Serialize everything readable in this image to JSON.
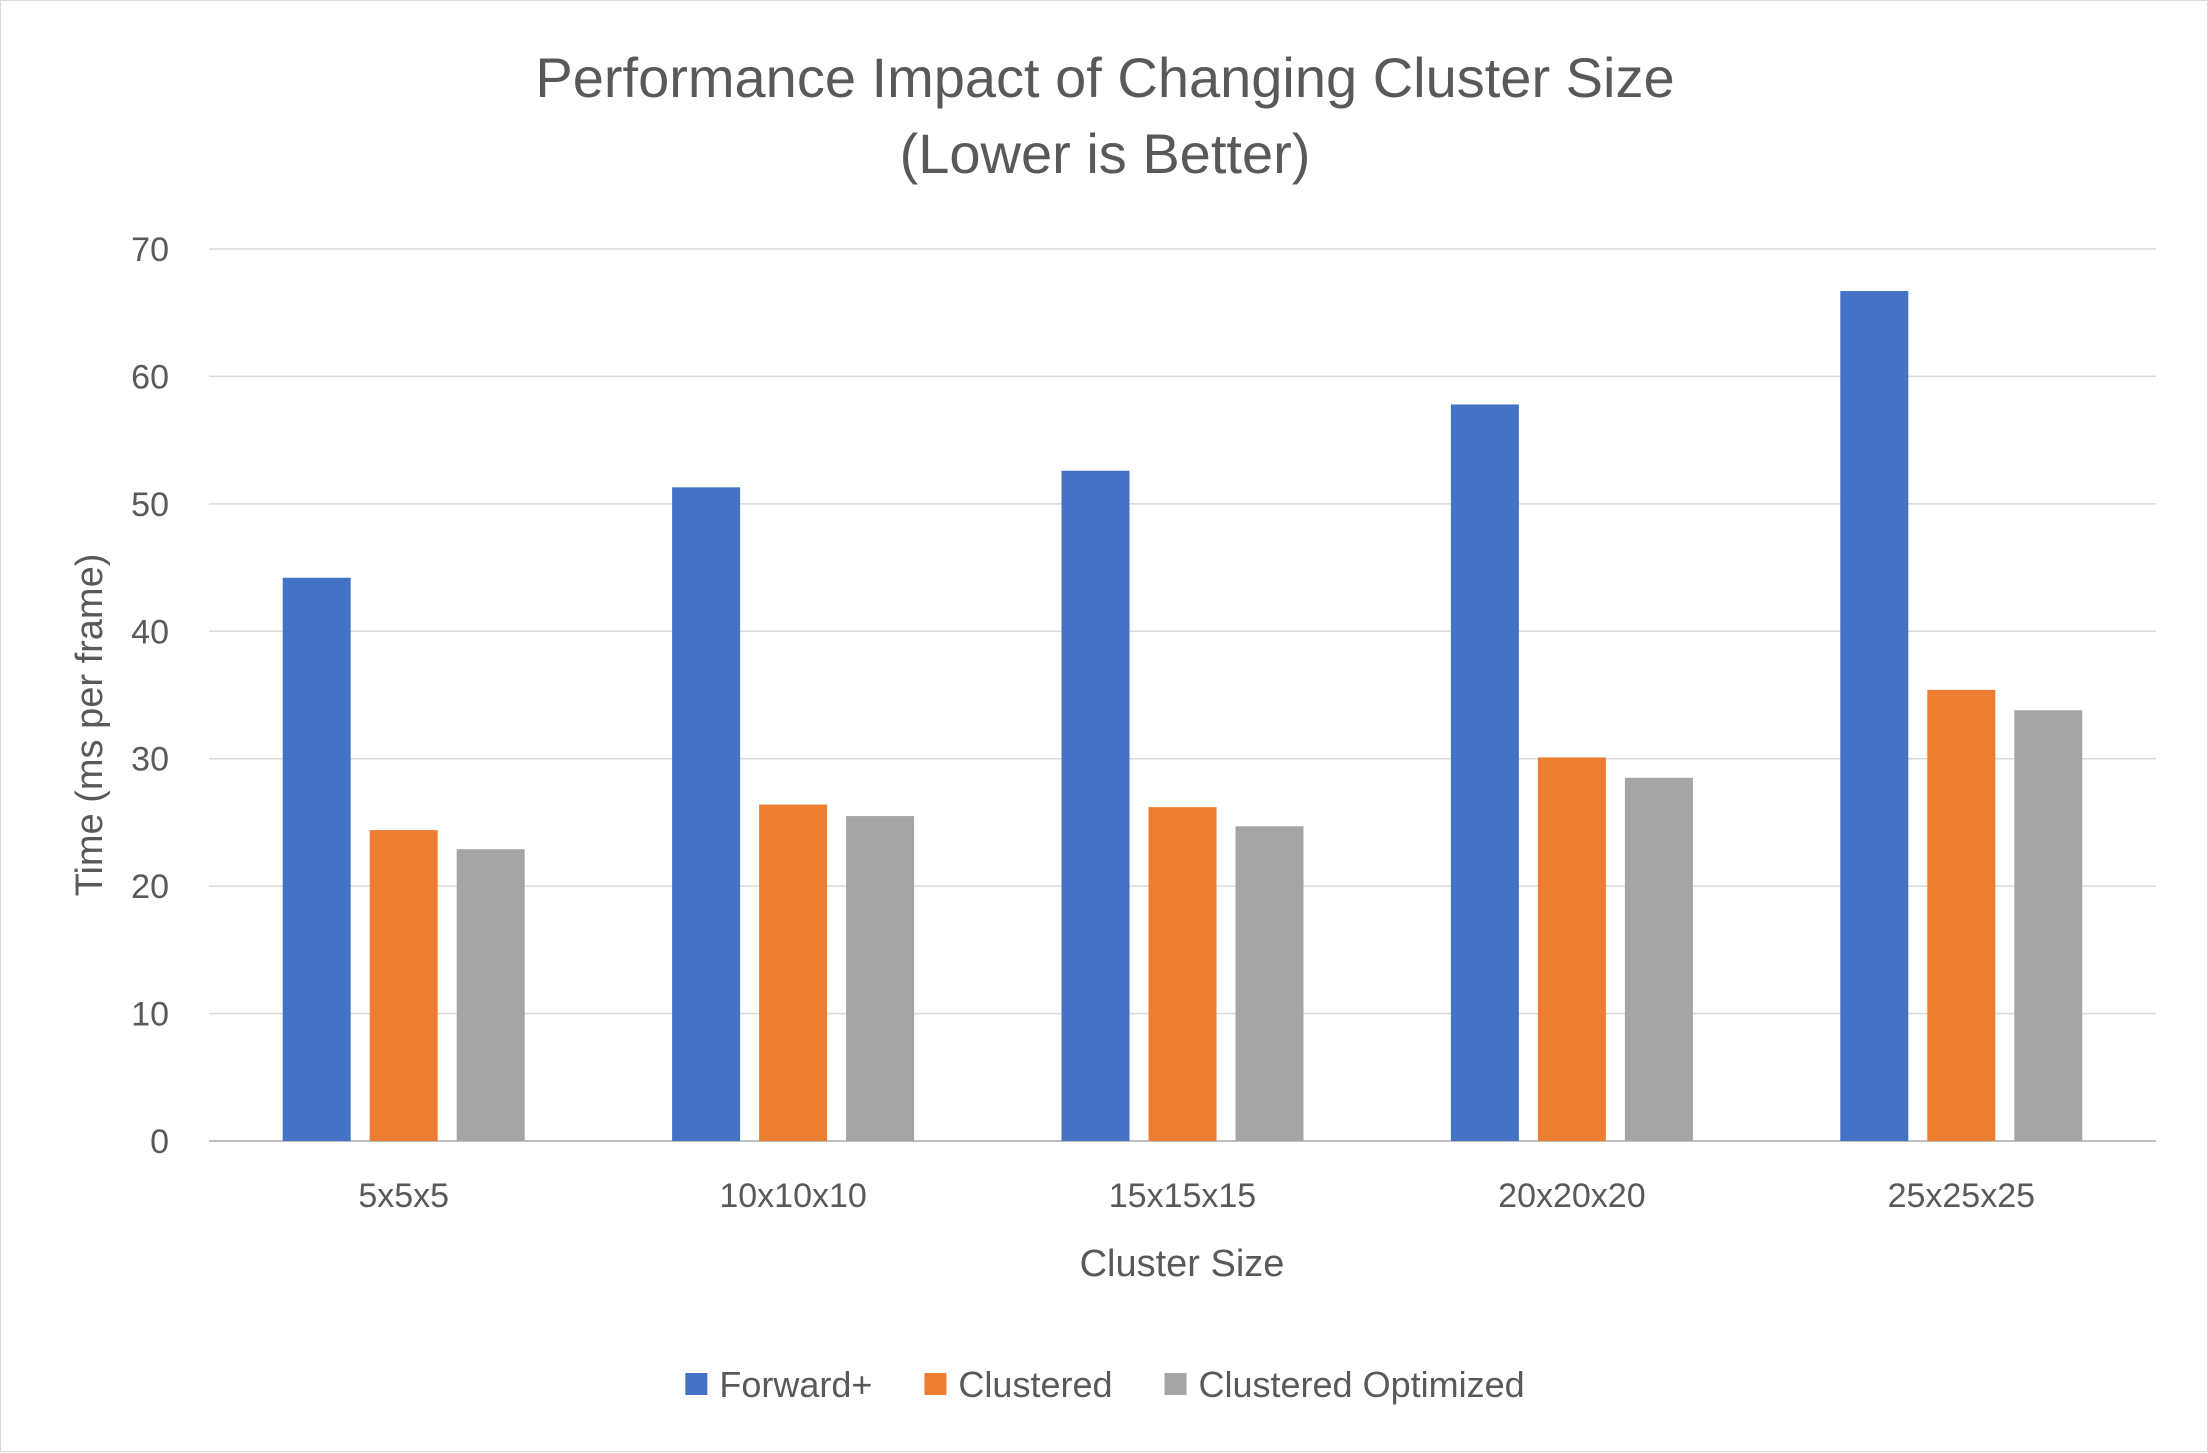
{
  "chart_data": {
    "type": "bar",
    "title": "Performance Impact of Changing Cluster Size",
    "subtitle": "(Lower is Better)",
    "xlabel": "Cluster Size",
    "ylabel": "Time (ms per frame)",
    "categories": [
      "5x5x5",
      "10x10x10",
      "15x15x15",
      "20x20x20",
      "25x25x25"
    ],
    "ylim": [
      0,
      70
    ],
    "yticks": [
      0,
      10,
      20,
      30,
      40,
      50,
      60,
      70
    ],
    "grid": true,
    "legend_position": "bottom",
    "series": [
      {
        "name": "Forward+",
        "color": "#4472C4",
        "values": [
          44.2,
          51.3,
          52.6,
          57.8,
          66.7
        ]
      },
      {
        "name": "Clustered",
        "color": "#ED7D31",
        "values": [
          24.4,
          26.4,
          26.2,
          30.1,
          35.4
        ]
      },
      {
        "name": "Clustered Optimized",
        "color": "#A5A5A5",
        "values": [
          22.9,
          25.5,
          24.7,
          28.5,
          33.8
        ]
      }
    ]
  }
}
